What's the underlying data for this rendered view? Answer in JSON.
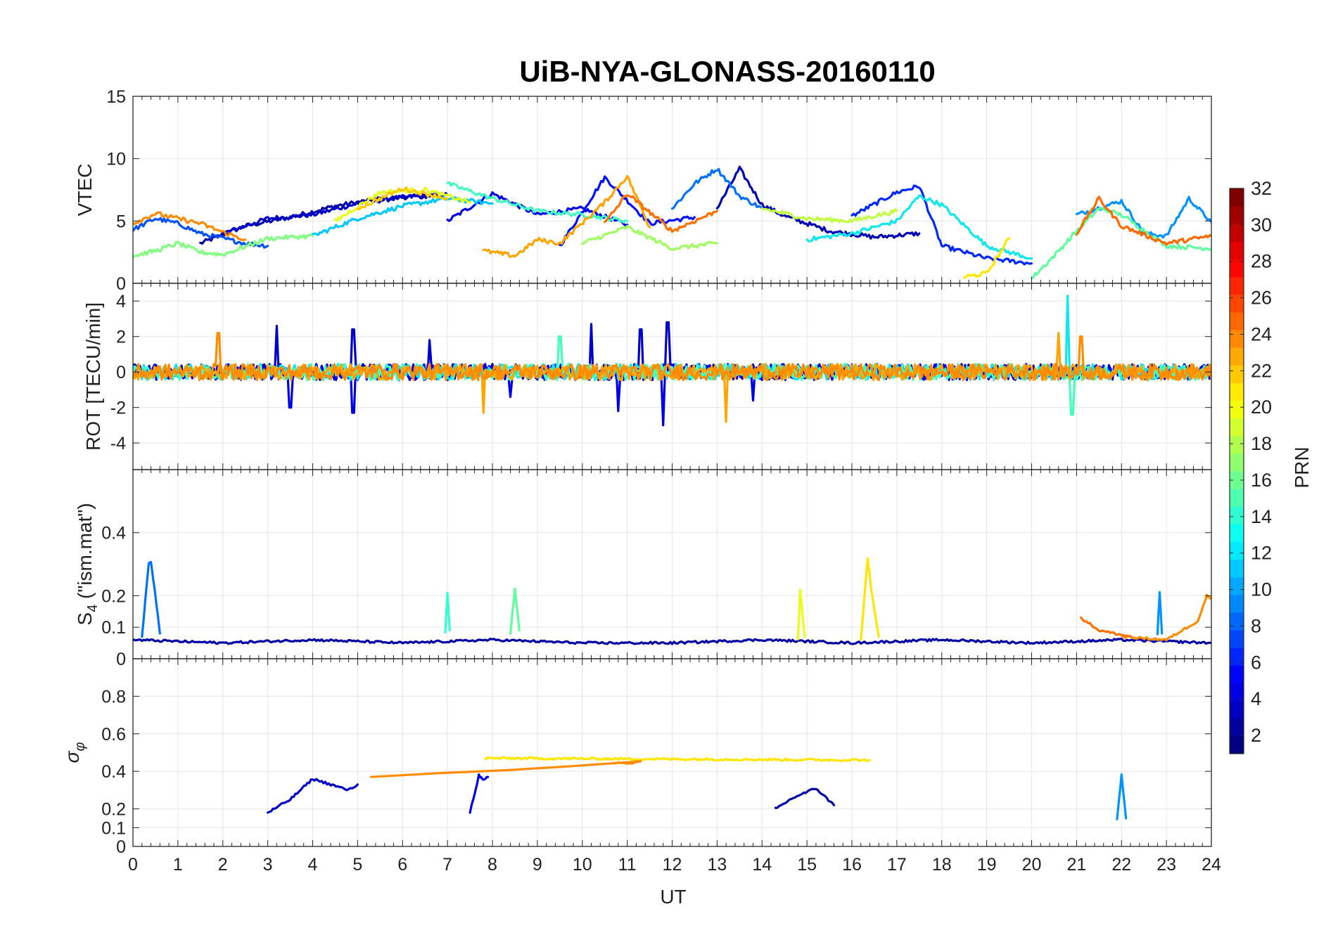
{
  "chart_data": {
    "type": "line",
    "title": "UiB-NYA-GLONASS-20160110",
    "xlabel": "UT",
    "xlim": [
      0,
      24
    ],
    "xticks": [
      "0",
      "1",
      "2",
      "3",
      "4",
      "5",
      "6",
      "7",
      "8",
      "9",
      "10",
      "11",
      "12",
      "13",
      "14",
      "15",
      "16",
      "17",
      "18",
      "19",
      "20",
      "21",
      "22",
      "23",
      "24"
    ],
    "grid": true,
    "colorbar": {
      "label": "PRN",
      "range": [
        1,
        32
      ],
      "ticks": [
        "2",
        "4",
        "6",
        "8",
        "10",
        "12",
        "14",
        "16",
        "18",
        "20",
        "22",
        "24",
        "26",
        "28",
        "30",
        "32"
      ],
      "colormap": "jet",
      "placement": "right"
    },
    "panels": [
      {
        "id": "vtec",
        "ylabel": "VTEC",
        "ylim": [
          0,
          15
        ],
        "yticks": [
          "0",
          "5",
          "10",
          "15"
        ],
        "series": [
          {
            "prn": 1,
            "color": "#0000a6",
            "x": [
              1.5,
              2.5,
              3.5,
              4.5,
              5.5,
              6.5
            ],
            "y": [
              3.2,
              4.6,
              5.3,
              6.2,
              6.8,
              7.0
            ]
          },
          {
            "prn": 2,
            "color": "#0000c8",
            "x": [
              2,
              3,
              4,
              5,
              6,
              7
            ],
            "y": [
              4.0,
              5.2,
              5.5,
              6.4,
              6.9,
              7.1
            ]
          },
          {
            "prn": 3,
            "color": "#0000e8",
            "x": [
              7,
              8,
              9,
              10,
              11
            ],
            "y": [
              5.0,
              7.2,
              5.5,
              6.0,
              4.7
            ]
          },
          {
            "prn": 4,
            "color": "#0010ff",
            "x": [
              9.5,
              10.5,
              11.5,
              12.5
            ],
            "y": [
              3.0,
              8.5,
              4.8,
              5.3
            ]
          },
          {
            "prn": 5,
            "color": "#0000b4",
            "x": [
              13,
              13.5,
              14,
              14.5,
              15.5,
              16.5,
              17.5
            ],
            "y": [
              6.0,
              9.2,
              6.3,
              5.4,
              4.2,
              3.7,
              4.0
            ]
          },
          {
            "prn": 6,
            "color": "#0028ff",
            "x": [
              16,
              17,
              17.5,
              18,
              19,
              20
            ],
            "y": [
              5.4,
              7.3,
              7.8,
              3.0,
              2.0,
              1.6
            ]
          },
          {
            "prn": 7,
            "color": "#0052ff",
            "x": [
              0,
              0.5,
              1,
              1.5,
              2,
              2.5,
              3
            ],
            "y": [
              4.3,
              5.2,
              4.8,
              4.0,
              3.6,
              3.2,
              3.0
            ]
          },
          {
            "prn": 8,
            "color": "#0070ff",
            "x": [
              12,
              12.5,
              13,
              13.5,
              14
            ],
            "y": [
              6.0,
              8.0,
              9.2,
              7.0,
              6.0
            ]
          },
          {
            "prn": 9,
            "color": "#0092ff",
            "x": [
              21,
              22,
              22.5,
              23,
              23.5,
              24
            ],
            "y": [
              5.5,
              6.6,
              4.0,
              3.8,
              6.8,
              4.9
            ]
          },
          {
            "prn": 11,
            "color": "#00c8ff",
            "x": [
              4,
              5,
              6,
              7,
              8
            ],
            "y": [
              3.8,
              5.2,
              6.2,
              6.8,
              6.4
            ]
          },
          {
            "prn": 12,
            "color": "#10e6ee",
            "x": [
              15,
              16,
              17,
              17.5,
              18,
              19,
              20
            ],
            "y": [
              3.5,
              4.0,
              5.0,
              7.0,
              6.3,
              3.0,
              2.0
            ]
          },
          {
            "prn": 14,
            "color": "#40ffc0",
            "x": [
              7,
              8,
              9,
              10,
              11
            ],
            "y": [
              8.0,
              6.8,
              5.8,
              5.5,
              5.0
            ]
          },
          {
            "prn": 15,
            "color": "#60ff9e",
            "x": [
              20,
              20.5,
              21,
              21.5,
              22,
              23,
              24
            ],
            "y": [
              0.4,
              2.2,
              4.2,
              6.0,
              5.5,
              3.0,
              2.8
            ]
          },
          {
            "prn": 16,
            "color": "#80ff80",
            "x": [
              0,
              0.5,
              1,
              1.5,
              2,
              3,
              4
            ],
            "y": [
              2.2,
              2.6,
              3.2,
              2.5,
              2.3,
              3.6,
              3.8
            ]
          },
          {
            "prn": 17,
            "color": "#a0ff60",
            "x": [
              10,
              11,
              12,
              13
            ],
            "y": [
              3.2,
              4.5,
              2.8,
              3.2
            ]
          },
          {
            "prn": 18,
            "color": "#c0ff40",
            "x": [
              14,
              15,
              16,
              17
            ],
            "y": [
              6.0,
              5.2,
              5.0,
              5.8
            ]
          },
          {
            "prn": 19,
            "color": "#e6ff18",
            "x": [
              4.5,
              5.5,
              6.5,
              7.5
            ],
            "y": [
              5.0,
              7.3,
              7.5,
              6.5
            ]
          },
          {
            "prn": 20,
            "color": "#ffe600",
            "x": [
              18.5,
              19,
              19.5
            ],
            "y": [
              0.5,
              0.8,
              3.6
            ]
          },
          {
            "prn": 21,
            "color": "#ffc800",
            "x": [
              5,
              6,
              7
            ],
            "y": [
              6.0,
              7.6,
              6.8
            ]
          },
          {
            "prn": 22,
            "color": "#ffa400",
            "x": [
              7.8,
              8.5,
              9,
              9.5,
              10.5,
              11,
              11.5
            ],
            "y": [
              2.6,
              2.2,
              3.5,
              3.2,
              6.5,
              8.6,
              4.5
            ]
          },
          {
            "prn": 23,
            "color": "#ff8c00",
            "x": [
              0,
              0.5,
              1,
              1.5,
              2,
              2.5
            ],
            "y": [
              4.8,
              5.6,
              5.2,
              4.8,
              4.1,
              3.5
            ]
          },
          {
            "prn": 24,
            "color": "#ff7000",
            "x": [
              10.5,
              11,
              12,
              13
            ],
            "y": [
              4.8,
              7.2,
              4.2,
              5.8
            ]
          },
          {
            "prn": 25,
            "color": "#ff6a00",
            "x": [
              21,
              21.5,
              22,
              23,
              24
            ],
            "y": [
              4.0,
              6.8,
              4.6,
              3.2,
              3.8
            ]
          }
        ]
      },
      {
        "id": "rot",
        "ylabel": "ROT [TECU/min]",
        "ylim": [
          -5.5,
          5
        ],
        "yticks": [
          "-4",
          "-2",
          "0",
          "2",
          "4"
        ],
        "series": [
          {
            "prn": 2,
            "color": "#0000c8",
            "x": [
              3.2,
              4.9,
              6.6,
              10.2,
              11.3,
              11.9
            ],
            "y": [
              2.6,
              2.4,
              1.8,
              2.7,
              2.4,
              2.8
            ]
          },
          {
            "prn": 3,
            "color": "#0000e8",
            "x": [
              3.5,
              4.9,
              8.4,
              10.8,
              11.8,
              13.8
            ],
            "y": [
              -2.0,
              -2.3,
              -1.4,
              -2.2,
              -3.0,
              -1.6
            ]
          },
          {
            "prn": 12,
            "color": "#10e6ee",
            "x": [
              20.8
            ],
            "y": [
              4.3
            ]
          },
          {
            "prn": 14,
            "color": "#40ffc0",
            "x": [
              20.9,
              9.5
            ],
            "y": [
              -2.4,
              2.0
            ]
          },
          {
            "prn": 22,
            "color": "#ffa400",
            "x": [
              13.2,
              20.6,
              7.8
            ],
            "y": [
              -2.8,
              2.2,
              -2.3
            ]
          },
          {
            "prn": 23,
            "color": "#ff8c00",
            "x": [
              1.9,
              21.1
            ],
            "y": [
              2.2,
              2.0
            ]
          }
        ]
      },
      {
        "id": "s4",
        "ylabel": "S4 (\"ism.mat\")",
        "ylabel_main": "S",
        "ylabel_sub": "4",
        "ylabel_rest": " (\"ism.mat\")",
        "ylim": [
          0,
          0.6
        ],
        "yticks": [
          "0",
          "0.1",
          "0.2",
          "0.4"
        ],
        "series": [
          {
            "prn": 1,
            "color": "#0000a6",
            "x": [
              0,
              2,
              4,
              6,
              8,
              10,
              12,
              14,
              16,
              18,
              20,
              22,
              24
            ],
            "y": [
              0.06,
              0.05,
              0.06,
              0.05,
              0.06,
              0.05,
              0.05,
              0.06,
              0.05,
              0.06,
              0.05,
              0.06,
              0.05
            ]
          },
          {
            "prn": 8,
            "color": "#0070ff",
            "x": [
              0.2,
              0.35,
              0.4,
              0.5,
              0.6
            ],
            "y": [
              0.07,
              0.3,
              0.31,
              0.2,
              0.08
            ]
          },
          {
            "prn": 9,
            "color": "#0092ff",
            "x": [
              22.8,
              22.85,
              22.9
            ],
            "y": [
              0.08,
              0.21,
              0.08
            ]
          },
          {
            "prn": 15,
            "color": "#60ff9e",
            "x": [
              8.4,
              8.5,
              8.6
            ],
            "y": [
              0.08,
              0.22,
              0.09
            ]
          },
          {
            "prn": 13,
            "color": "#30ffd0",
            "x": [
              6.95,
              7.0,
              7.05
            ],
            "y": [
              0.08,
              0.21,
              0.09
            ]
          },
          {
            "prn": 20,
            "color": "#ffe600",
            "x": [
              16.2,
              16.35,
              16.45,
              16.6
            ],
            "y": [
              0.06,
              0.32,
              0.2,
              0.07
            ]
          },
          {
            "prn": 19,
            "color": "#e6ff18",
            "x": [
              14.8,
              14.85,
              14.95
            ],
            "y": [
              0.06,
              0.22,
              0.07
            ]
          },
          {
            "prn": 23,
            "color": "#ff8c00",
            "x": [
              22,
              23,
              23.7,
              23.9,
              24
            ],
            "y": [
              0.07,
              0.06,
              0.12,
              0.2,
              0.19
            ]
          },
          {
            "prn": 24,
            "color": "#ff7000",
            "x": [
              21.1,
              21.5,
              22.2
            ],
            "y": [
              0.13,
              0.09,
              0.07
            ]
          }
        ]
      },
      {
        "id": "sigma_phi",
        "ylabel": "σφ",
        "ylabel_main": "σ",
        "ylabel_sub": "φ",
        "ylim": [
          0,
          1
        ],
        "yticks": [
          "0",
          "0.1",
          "0.2",
          "0.4",
          "0.6",
          "0.8"
        ],
        "series": [
          {
            "prn": 2,
            "color": "#0000c8",
            "x": [
              3,
              3.5,
              4.0,
              4.8,
              5.0
            ],
            "y": [
              0.18,
              0.25,
              0.36,
              0.3,
              0.33
            ]
          },
          {
            "prn": 3,
            "color": "#0000e8",
            "x": [
              7.5,
              7.7,
              7.8,
              7.9
            ],
            "y": [
              0.18,
              0.38,
              0.35,
              0.37
            ]
          },
          {
            "prn": 1,
            "color": "#0000a6",
            "x": [
              14.3,
              14.7,
              15.2,
              15.6
            ],
            "y": [
              0.2,
              0.26,
              0.31,
              0.22
            ]
          },
          {
            "prn": 9,
            "color": "#0092ff",
            "x": [
              21.9,
              22.0,
              22.1
            ],
            "y": [
              0.15,
              0.38,
              0.15
            ]
          },
          {
            "prn": 20,
            "color": "#ffe600",
            "x": [
              7.85,
              16.4
            ],
            "y": [
              0.47,
              0.46
            ]
          },
          {
            "prn": 23,
            "color": "#ff8c00",
            "x": [
              10.7,
              11.3,
              5.3
            ],
            "y": [
              0.44,
              0.45,
              0.37
            ]
          }
        ]
      }
    ]
  }
}
